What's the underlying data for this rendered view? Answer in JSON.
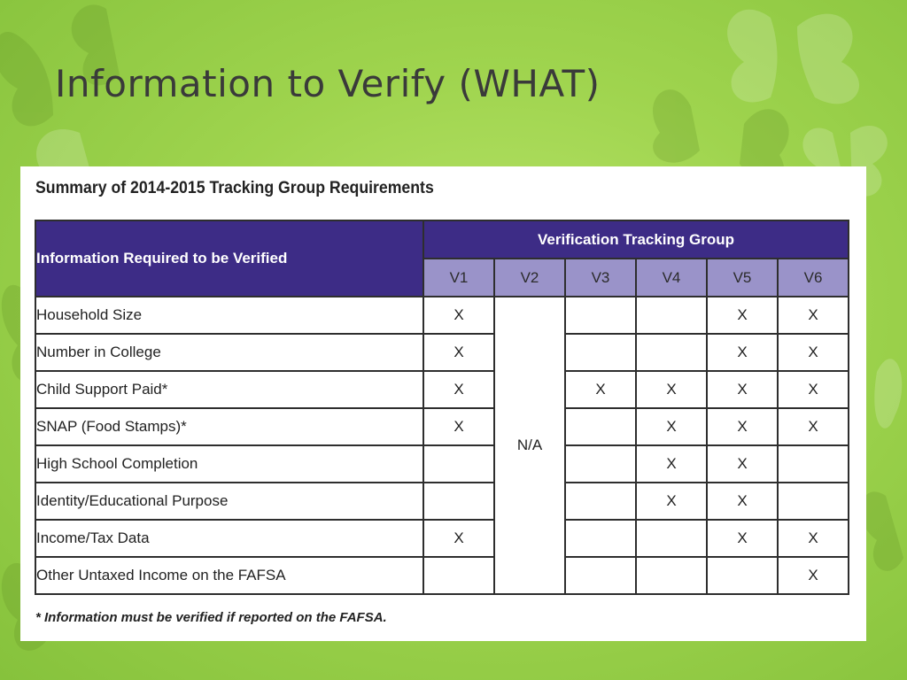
{
  "slide": {
    "title": "Information to Verify (WHAT)"
  },
  "table": {
    "heading": "Summary of 2014-2015 Tracking Group Requirements",
    "row_header": "Information Required to be Verified",
    "group_header": "Verification Tracking Group",
    "columns": [
      "V1",
      "V2",
      "V3",
      "V4",
      "V5",
      "V6"
    ],
    "v2_value": "N/A",
    "rows": [
      {
        "label": "Household Size",
        "marks": [
          "X",
          "",
          "",
          "X",
          "X"
        ]
      },
      {
        "label": "Number in College",
        "marks": [
          "X",
          "",
          "",
          "X",
          "X"
        ]
      },
      {
        "label": "Child Support Paid*",
        "marks": [
          "X",
          "X",
          "X",
          "X",
          "X"
        ]
      },
      {
        "label": "SNAP (Food Stamps)*",
        "marks": [
          "X",
          "",
          "X",
          "X",
          "X"
        ]
      },
      {
        "label": "High School Completion",
        "marks": [
          "",
          "",
          "X",
          "X",
          ""
        ]
      },
      {
        "label": "Identity/Educational Purpose",
        "marks": [
          "",
          "",
          "X",
          "X",
          ""
        ]
      },
      {
        "label": "Income/Tax Data",
        "marks": [
          "X",
          "",
          "",
          "X",
          "X"
        ]
      },
      {
        "label": "Other Untaxed Income on the FAFSA",
        "marks": [
          "",
          "",
          "",
          "",
          "X"
        ]
      }
    ],
    "footnote": "* Information must be verified if reported on the FAFSA."
  },
  "theme": {
    "header_color": "#3d2c86",
    "subheader_color": "#9a93c9",
    "background_color": "#9fd44e"
  }
}
